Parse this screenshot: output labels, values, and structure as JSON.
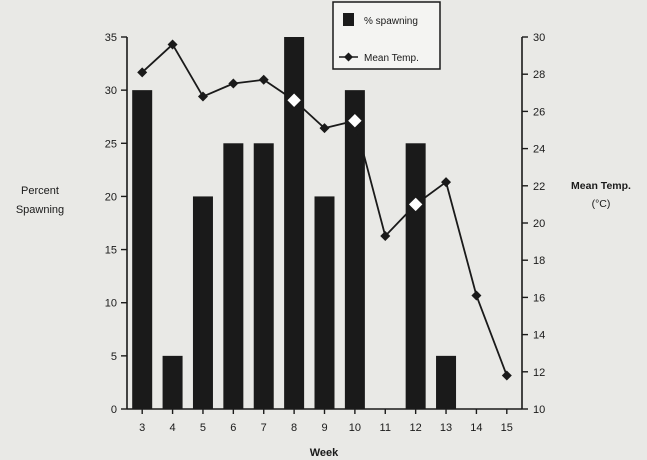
{
  "chart_data": {
    "type": "bar",
    "title": "",
    "xlabel": "Week",
    "ylabel_left": [
      "Percent",
      "Spawning"
    ],
    "ylabel_right": [
      "Mean Temp.",
      "(°C)"
    ],
    "categories": [
      "3",
      "4",
      "5",
      "6",
      "7",
      "8",
      "9",
      "10",
      "11",
      "12",
      "13",
      "14",
      "15"
    ],
    "ylim_left": [
      0,
      35
    ],
    "yticks_left": [
      0,
      5,
      10,
      15,
      20,
      25,
      30,
      35
    ],
    "ylim_right": [
      10,
      30
    ],
    "yticks_right": [
      10,
      12,
      14,
      16,
      18,
      20,
      22,
      24,
      26,
      28,
      30
    ],
    "grid": false,
    "legend_position": "top-center",
    "series": [
      {
        "name": "% spawning",
        "kind": "bar",
        "axis": "left",
        "color": "#1a1a1a",
        "values": [
          30,
          5,
          20,
          25,
          25,
          35,
          20,
          30,
          0,
          25,
          5,
          0,
          0
        ]
      },
      {
        "name": "Mean Temp.",
        "kind": "line",
        "axis": "right",
        "color": "#1a1a1a",
        "values": [
          28.1,
          29.6,
          26.8,
          27.5,
          27.7,
          26.6,
          25.1,
          25.5,
          19.3,
          21.0,
          22.2,
          16.1,
          11.8
        ]
      }
    ]
  }
}
